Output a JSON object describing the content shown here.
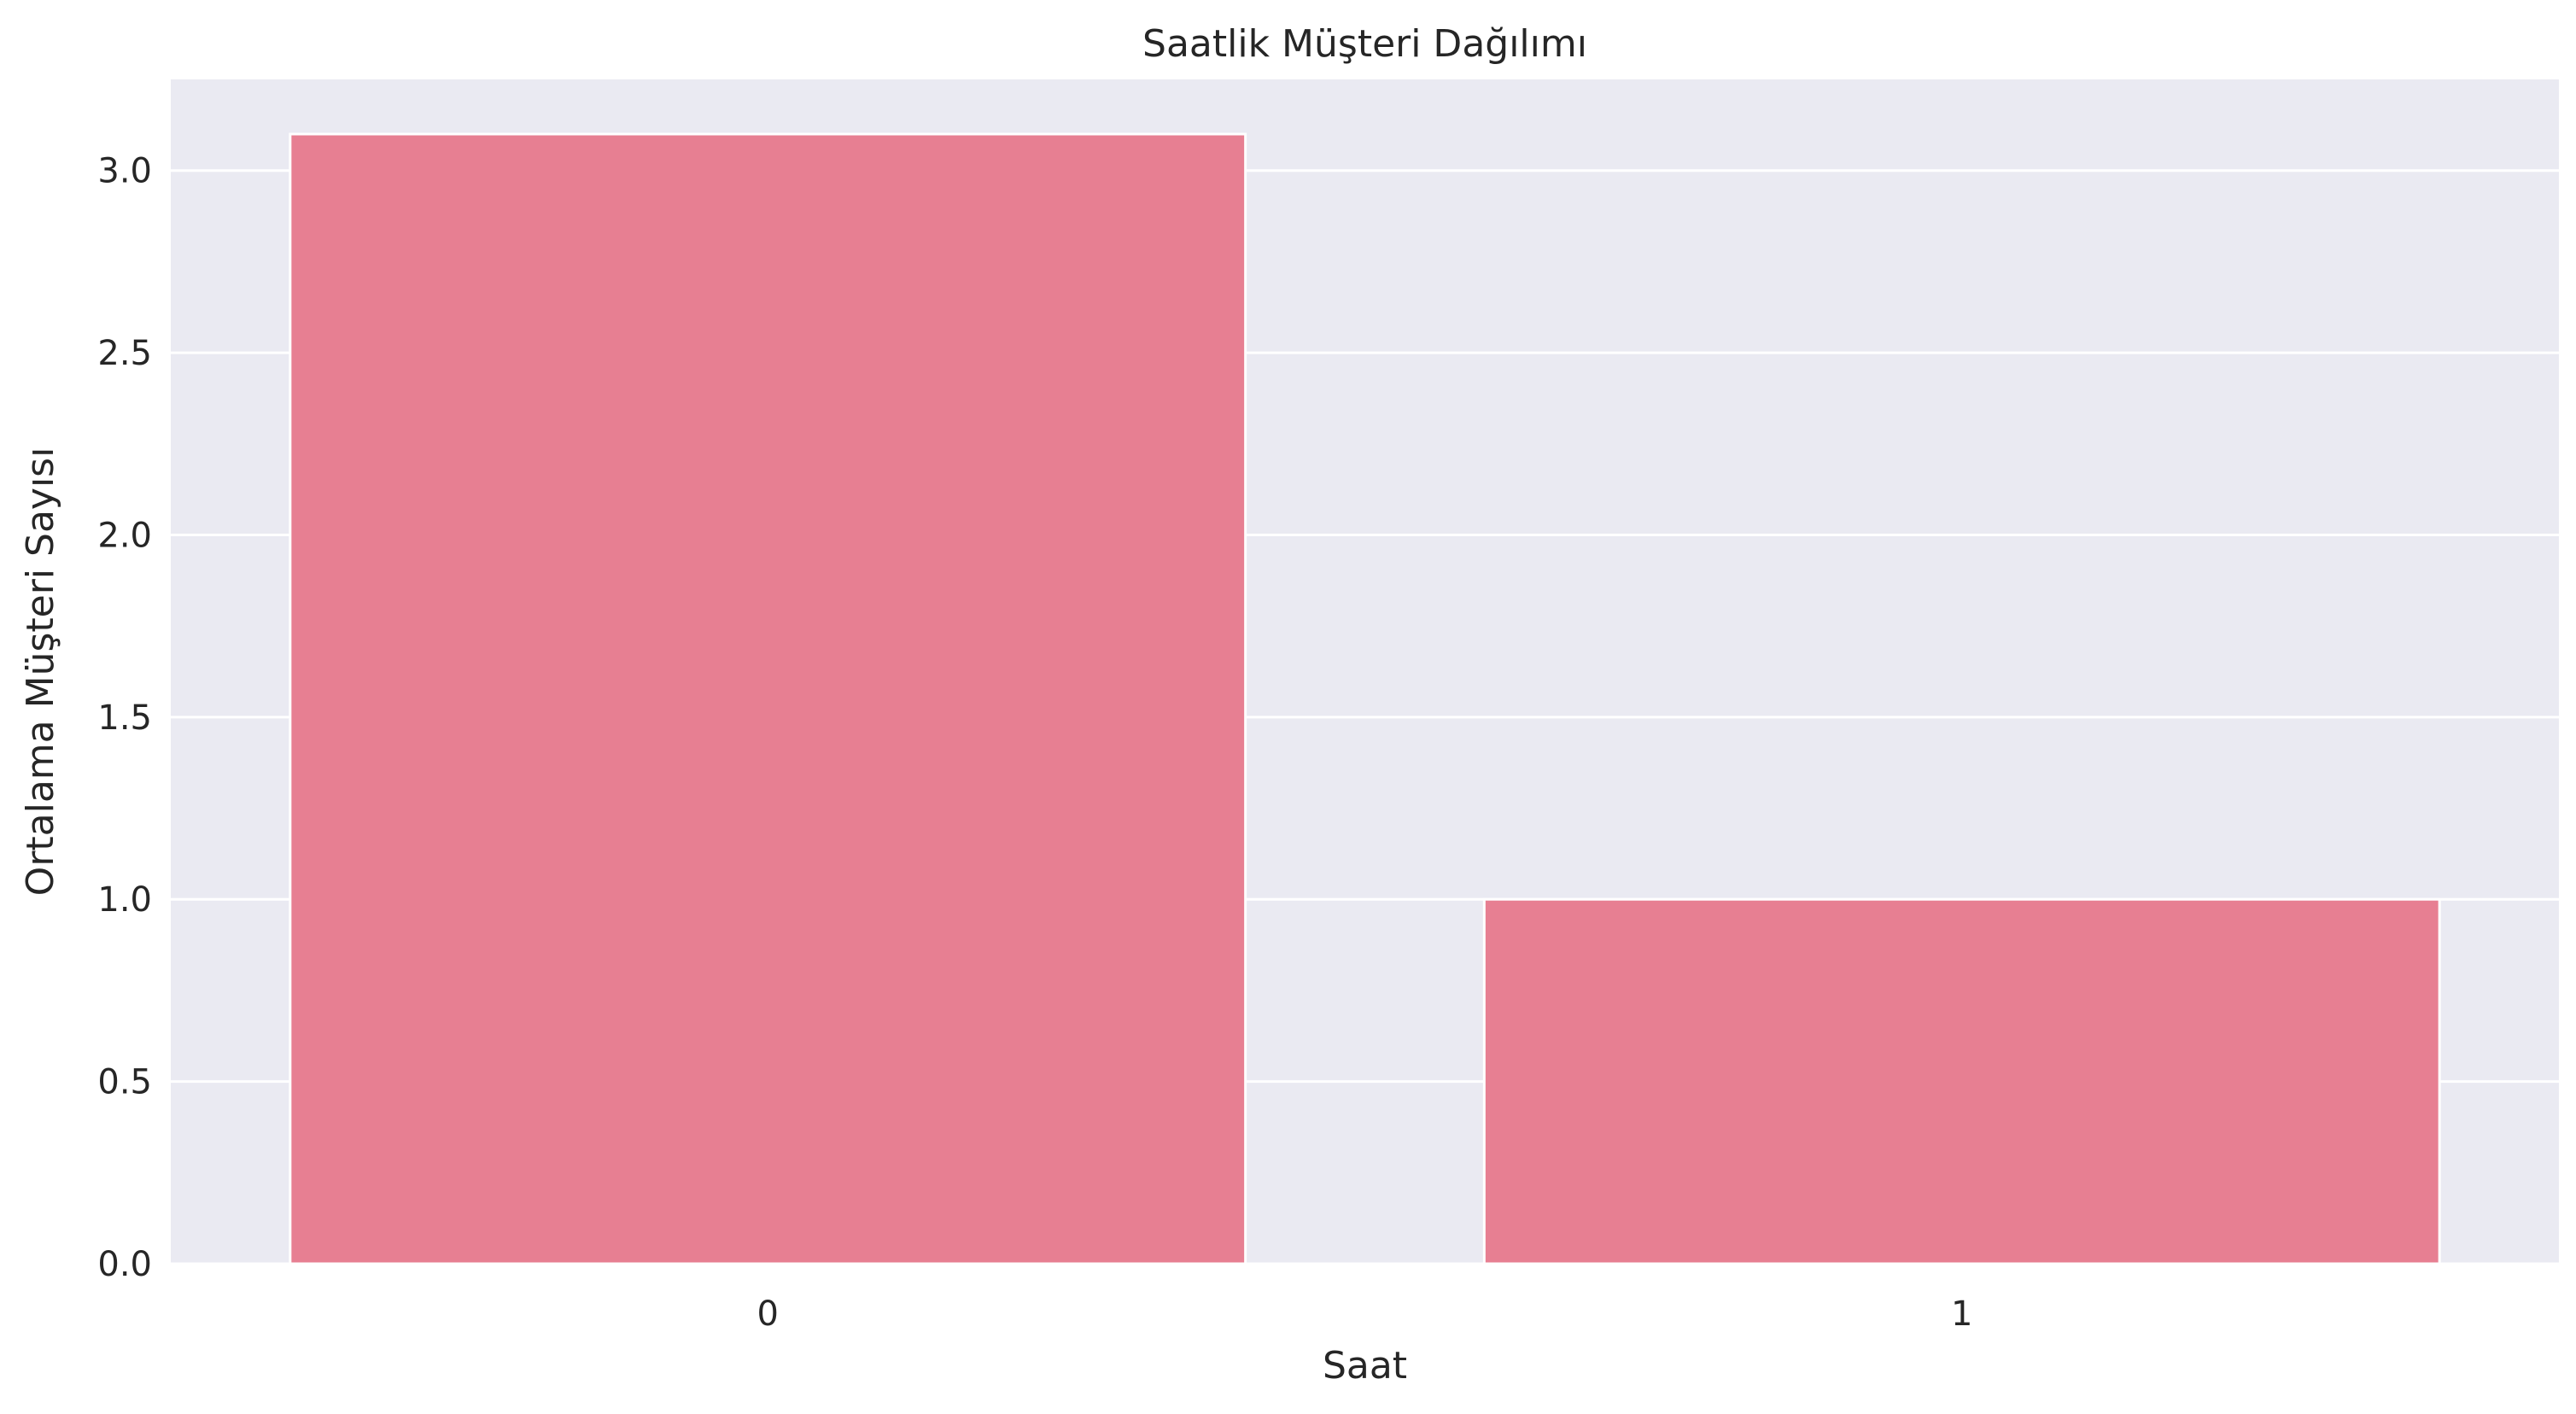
{
  "chart_data": {
    "type": "bar",
    "title": "Saatlik Müşteri Dağılımı",
    "xlabel": "Saat",
    "ylabel": "Ortalama Müşteri Sayısı",
    "categories": [
      "0",
      "1"
    ],
    "values": [
      3.1,
      1.0
    ],
    "ylim": [
      0,
      3.25
    ],
    "yticks": [
      0.0,
      0.5,
      1.0,
      1.5,
      2.0,
      2.5,
      3.0
    ],
    "ytick_labels": [
      "0.0",
      "0.5",
      "1.0",
      "1.5",
      "2.0",
      "2.5",
      "3.0"
    ],
    "grid": true,
    "legend": "none",
    "colors": {
      "bar": "#e77f92",
      "plot_background": "#eaeaf2",
      "grid": "#ffffff",
      "text": "#262626"
    }
  }
}
